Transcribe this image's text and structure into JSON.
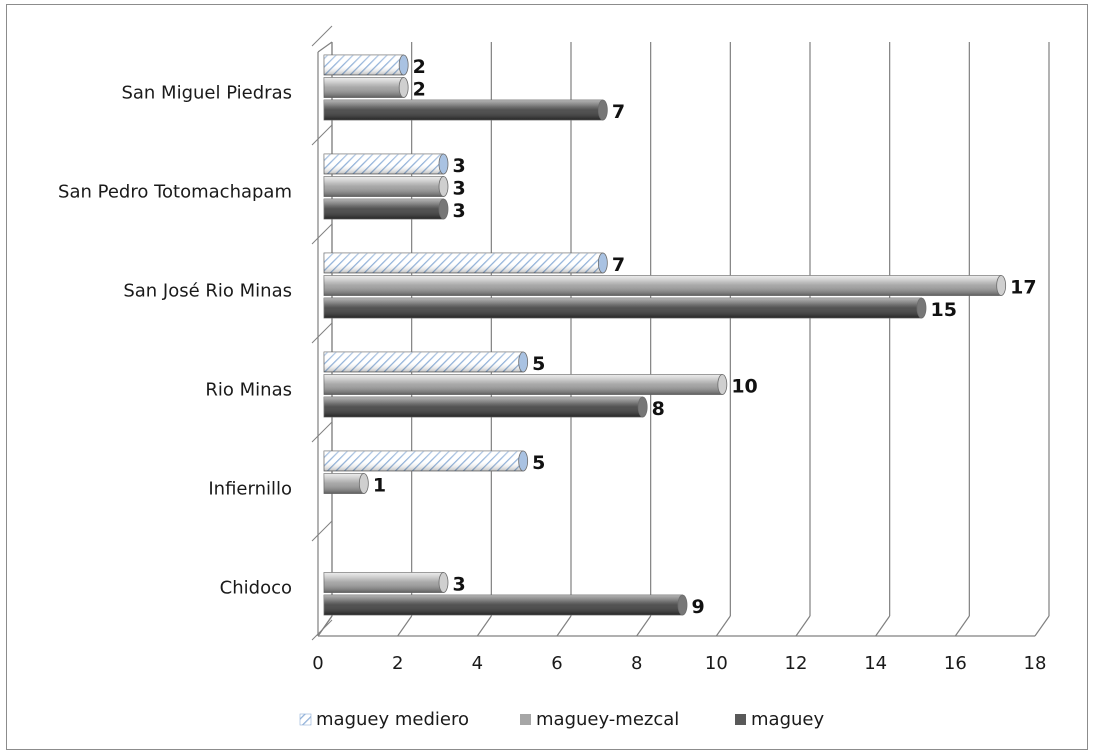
{
  "chart_data": {
    "type": "bar",
    "orientation": "horizontal",
    "style": "3d-cylinder",
    "categories": [
      "Chidoco",
      "Infiernillo",
      "Rio Minas",
      "San José Rio Minas",
      "San Pedro Totomachapam",
      "San Miguel Piedras"
    ],
    "series": [
      {
        "name": "maguey mediero",
        "values": [
          null,
          5,
          5,
          7,
          3,
          2
        ],
        "color": "#c9d8ec",
        "pattern": "diagonal-hatch"
      },
      {
        "name": "maguey-mezcal",
        "values": [
          3,
          1,
          10,
          17,
          3,
          2
        ],
        "color": "#a6a6a6"
      },
      {
        "name": "maguey",
        "values": [
          9,
          null,
          8,
          15,
          3,
          7
        ],
        "color": "#595959"
      }
    ],
    "xlim": [
      0,
      18
    ],
    "x_ticks": [
      "0",
      "2",
      "4",
      "6",
      "8",
      "10",
      "12",
      "14",
      "16",
      "18"
    ],
    "grid": "vertical",
    "legend": "bottom",
    "title": "",
    "xlabel": "",
    "ylabel": ""
  }
}
